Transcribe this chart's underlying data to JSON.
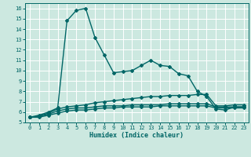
{
  "title": "",
  "xlabel": "Humidex (Indice chaleur)",
  "ylabel": "",
  "bg_color": "#cce8e0",
  "grid_color": "#aacccc",
  "line_color": "#006666",
  "xlim": [
    -0.5,
    23.5
  ],
  "ylim": [
    5,
    16.5
  ],
  "xticks": [
    0,
    1,
    2,
    3,
    4,
    5,
    6,
    7,
    8,
    9,
    10,
    11,
    12,
    13,
    14,
    15,
    16,
    17,
    18,
    19,
    20,
    21,
    22,
    23
  ],
  "yticks": [
    5,
    6,
    7,
    8,
    9,
    10,
    11,
    12,
    13,
    14,
    15,
    16
  ],
  "line1_x": [
    0,
    1,
    2,
    3,
    4,
    5,
    6,
    7,
    8,
    9,
    10,
    11,
    12,
    13,
    14,
    15,
    16,
    17,
    18,
    19,
    20,
    21,
    22,
    23
  ],
  "line1_y": [
    5.5,
    5.7,
    6.0,
    6.4,
    14.8,
    15.8,
    16.0,
    13.2,
    11.5,
    9.8,
    9.9,
    10.0,
    10.5,
    11.0,
    10.5,
    10.4,
    9.7,
    9.5,
    8.0,
    7.5,
    6.3,
    6.2,
    6.5,
    6.5
  ],
  "line2_x": [
    0,
    1,
    2,
    3,
    4,
    5,
    6,
    7,
    8,
    9,
    10,
    11,
    12,
    13,
    14,
    15,
    16,
    17,
    18,
    19,
    20,
    21,
    22,
    23
  ],
  "line2_y": [
    5.5,
    5.6,
    5.9,
    6.3,
    6.5,
    6.6,
    6.7,
    6.9,
    7.0,
    7.1,
    7.2,
    7.3,
    7.4,
    7.5,
    7.5,
    7.6,
    7.6,
    7.6,
    7.7,
    7.7,
    6.6,
    6.6,
    6.7,
    6.7
  ],
  "line3_x": [
    0,
    1,
    2,
    3,
    4,
    5,
    6,
    7,
    8,
    9,
    10,
    11,
    12,
    13,
    14,
    15,
    16,
    17,
    18,
    19,
    20,
    21,
    22,
    23
  ],
  "line3_y": [
    5.5,
    5.6,
    5.8,
    6.1,
    6.3,
    6.4,
    6.4,
    6.5,
    6.6,
    6.6,
    6.6,
    6.7,
    6.7,
    6.7,
    6.7,
    6.8,
    6.8,
    6.8,
    6.8,
    6.8,
    6.5,
    6.5,
    6.5,
    6.5
  ],
  "line4_x": [
    0,
    1,
    2,
    3,
    4,
    5,
    6,
    7,
    8,
    9,
    10,
    11,
    12,
    13,
    14,
    15,
    16,
    17,
    18,
    19,
    20,
    21,
    22,
    23
  ],
  "line4_y": [
    5.5,
    5.5,
    5.7,
    5.9,
    6.1,
    6.2,
    6.2,
    6.3,
    6.4,
    6.4,
    6.5,
    6.5,
    6.5,
    6.5,
    6.6,
    6.6,
    6.6,
    6.6,
    6.6,
    6.6,
    6.4,
    6.4,
    6.4,
    6.4
  ]
}
